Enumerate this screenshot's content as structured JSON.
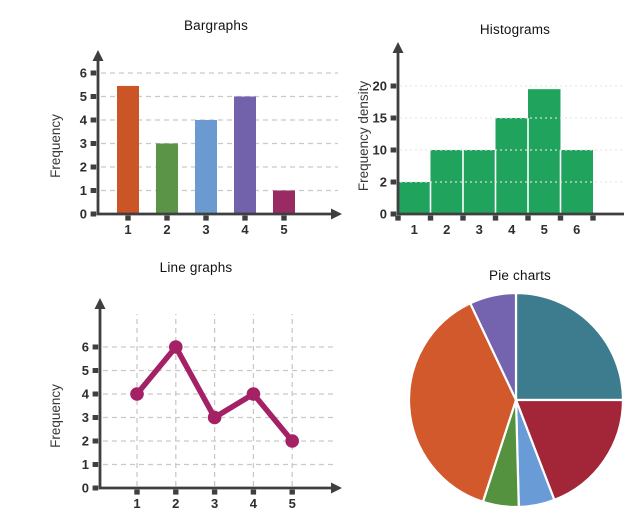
{
  "style": {
    "background": "#ffffff",
    "axis_color": "#3f3f3f",
    "grid_color": "#c9c9c9",
    "grid_color_light": "#e4e4e4",
    "tick_text_color": "#2e2e2e",
    "title_color": "#111111",
    "pie_separator_color": "#ffffff"
  },
  "chart_data": [
    {
      "type": "bar",
      "title": "Bargraphs",
      "ylabel": "Frequency",
      "categories": [
        "1",
        "2",
        "3",
        "4",
        "5"
      ],
      "values": [
        5.45,
        3,
        4,
        5,
        1
      ],
      "yticks": [
        0,
        1,
        2,
        3,
        4,
        5,
        6
      ],
      "ylim": [
        0,
        6.8
      ],
      "bar_colors": [
        "#cb5527",
        "#5b9447",
        "#6b9ad1",
        "#7262ab",
        "#9a2a63"
      ],
      "grid": "horizontal-dashed",
      "legend": "none"
    },
    {
      "type": "histogram",
      "title": "Histograms",
      "ylabel": "Frequency density",
      "bin_labels": [
        "1",
        "2",
        "3",
        "4",
        "5",
        "6"
      ],
      "values": [
        2,
        10,
        10,
        15,
        19.5,
        10
      ],
      "yticks": [
        0,
        2,
        10,
        15,
        20
      ],
      "axis_note": "yticks equally spaced (non-linear)",
      "bar_color": "#1fa35d",
      "grid": "horizontal-dotted",
      "legend": "none"
    },
    {
      "type": "line",
      "title": "Line graphs",
      "ylabel": "Frequency",
      "x": [
        1,
        2,
        3,
        4,
        5
      ],
      "y": [
        4,
        6,
        3,
        4,
        2
      ],
      "xticks": [
        1,
        2,
        3,
        4,
        5
      ],
      "yticks": [
        0,
        1,
        2,
        3,
        4,
        5,
        6
      ],
      "ylim": [
        0,
        6.8
      ],
      "line_color": "#a42166",
      "marker": "circle",
      "grid": "both-dashed",
      "legend": "none"
    },
    {
      "type": "pie",
      "title": "Pie charts",
      "slices": [
        {
          "name": "teal-slice",
          "color": "#3d7b8e",
          "start_deg": 0,
          "end_deg": 90,
          "percent": 25.0
        },
        {
          "name": "dark-red-slice",
          "color": "#a32638",
          "start_deg": 90,
          "end_deg": 159,
          "percent": 19.2
        },
        {
          "name": "light-blue-slice",
          "color": "#699bd7",
          "start_deg": 159,
          "end_deg": 178.5,
          "percent": 5.4
        },
        {
          "name": "green-slice",
          "color": "#55923f",
          "start_deg": 178.5,
          "end_deg": 198,
          "percent": 5.4
        },
        {
          "name": "orange-slice",
          "color": "#d1592b",
          "start_deg": 198,
          "end_deg": 334.7,
          "percent": 38.0
        },
        {
          "name": "purple-slice",
          "color": "#7463ae",
          "start_deg": 334.7,
          "end_deg": 360,
          "percent": 7.0
        }
      ],
      "legend": "none"
    }
  ]
}
